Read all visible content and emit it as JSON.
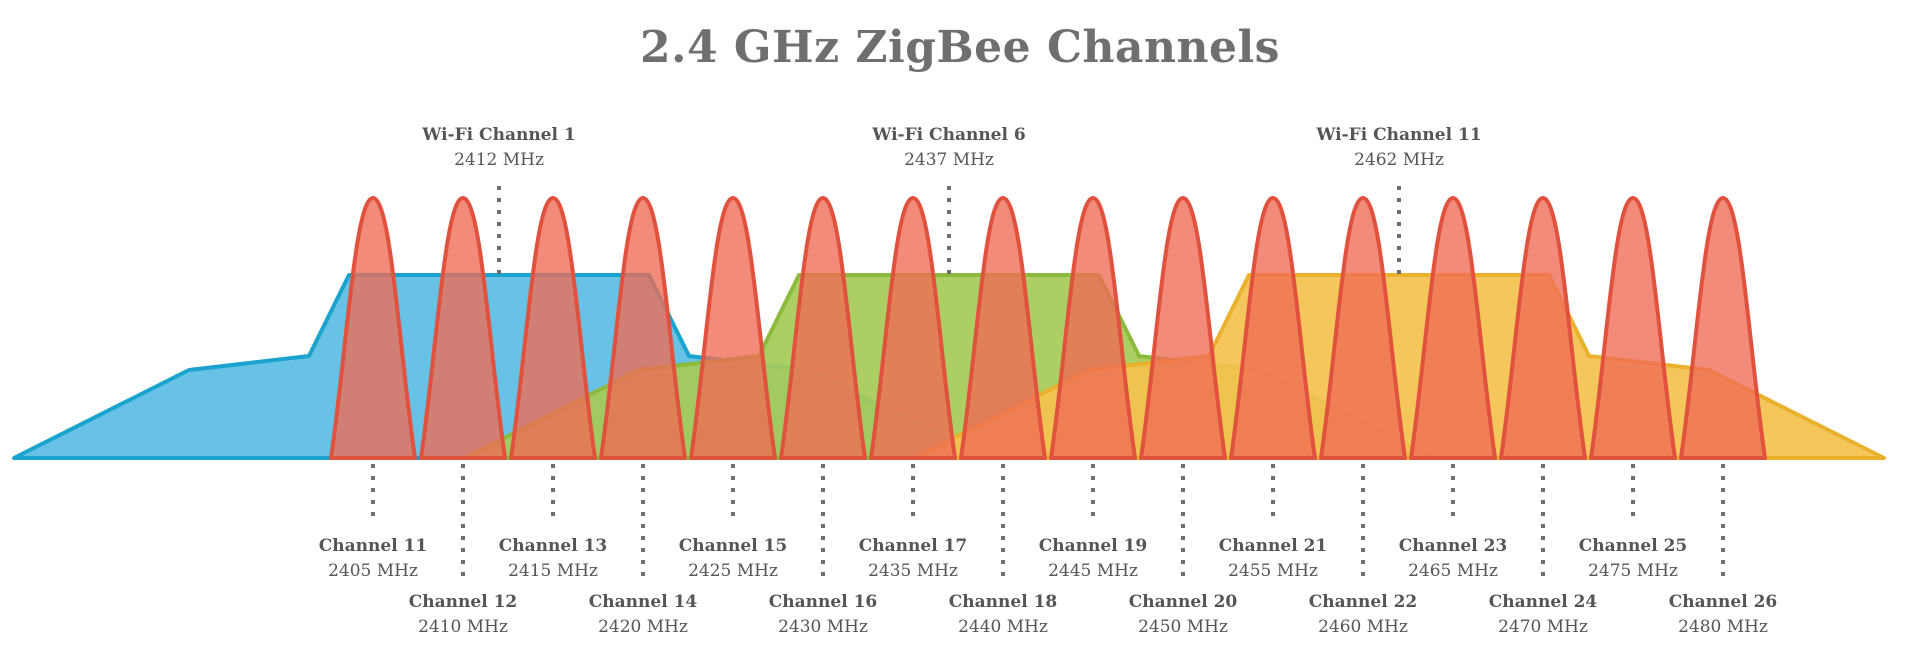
{
  "title": "2.4 GHz ZigBee Channels",
  "colors": {
    "wifi1_fill": "#5bbde3",
    "wifi1_stroke": "#1aa3cf",
    "wifi6_fill": "#a6ca57",
    "wifi6_stroke": "#8cba3c",
    "wifi11_fill": "#f3c24f",
    "wifi11_stroke": "#eab12c",
    "zigbee_fill": "#ef6a55",
    "zigbee_stroke": "#e0523d",
    "dots": "#6e6e6e",
    "text": "#555555"
  },
  "chart_data": {
    "type": "area",
    "x_unit": "MHz",
    "wifi_channels": [
      {
        "name": "Wi-Fi Channel 1",
        "freq_label": "2412 MHz",
        "center": 2412
      },
      {
        "name": "Wi-Fi Channel 6",
        "freq_label": "2437 MHz",
        "center": 2437
      },
      {
        "name": "Wi-Fi Channel 11",
        "freq_label": "2462 MHz",
        "center": 2462
      }
    ],
    "zigbee_channels": [
      {
        "name": "Channel 11",
        "freq_label": "2405 MHz",
        "center": 2405
      },
      {
        "name": "Channel 12",
        "freq_label": "2410 MHz",
        "center": 2410
      },
      {
        "name": "Channel 13",
        "freq_label": "2415 MHz",
        "center": 2415
      },
      {
        "name": "Channel 14",
        "freq_label": "2420 MHz",
        "center": 2420
      },
      {
        "name": "Channel 15",
        "freq_label": "2425 MHz",
        "center": 2425
      },
      {
        "name": "Channel 16",
        "freq_label": "2430 MHz",
        "center": 2430
      },
      {
        "name": "Channel 17",
        "freq_label": "2435 MHz",
        "center": 2435
      },
      {
        "name": "Channel 18",
        "freq_label": "2440 MHz",
        "center": 2440
      },
      {
        "name": "Channel 19",
        "freq_label": "2445 MHz",
        "center": 2445
      },
      {
        "name": "Channel 20",
        "freq_label": "2450 MHz",
        "center": 2450
      },
      {
        "name": "Channel 21",
        "freq_label": "2455 MHz",
        "center": 2455
      },
      {
        "name": "Channel 22",
        "freq_label": "2460 MHz",
        "center": 2460
      },
      {
        "name": "Channel 23",
        "freq_label": "2465 MHz",
        "center": 2465
      },
      {
        "name": "Channel 24",
        "freq_label": "2470 MHz",
        "center": 2470
      },
      {
        "name": "Channel 25",
        "freq_label": "2475 MHz",
        "center": 2475
      },
      {
        "name": "Channel 26",
        "freq_label": "2480 MHz",
        "center": 2480
      }
    ]
  }
}
